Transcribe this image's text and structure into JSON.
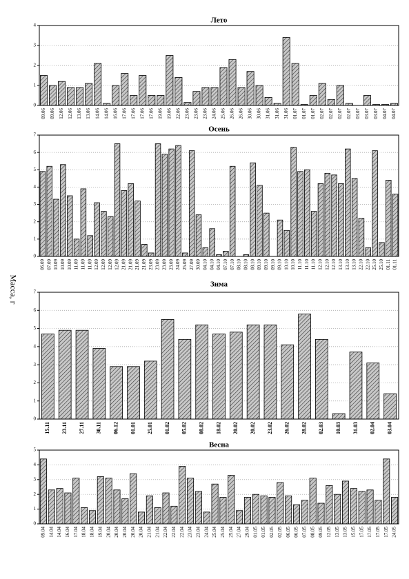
{
  "chart_data": [
    {
      "type": "bar",
      "title": "Лето",
      "color": "#c8c8c8",
      "ylim": [
        0,
        4
      ],
      "yticks": [
        0,
        1,
        2,
        3,
        4
      ],
      "grid": true,
      "categories": [
        "09.06",
        "09.06",
        "12.06",
        "12.06",
        "13.06",
        "13.06",
        "14.06",
        "14.06",
        "16.06",
        "17.06",
        "17.06",
        "17.06",
        "17.06",
        "19.06",
        "19.06",
        "22.06",
        "23.06",
        "23.06",
        "23.06",
        "24.06",
        "25.06",
        "26.06",
        "26.06",
        "30.06",
        "30.06",
        "31.06",
        "31.06",
        "31.06",
        "01.07",
        "01.07",
        "01.07",
        "02.07",
        "02.07",
        "02.07",
        "02.07",
        "03.07",
        "03.07",
        "03.07",
        "04.07",
        "04.07"
      ],
      "values": [
        1.5,
        1.0,
        1.2,
        0.9,
        0.9,
        1.1,
        2.1,
        0.1,
        1.0,
        1.6,
        0.5,
        1.5,
        0.5,
        0.5,
        2.5,
        1.4,
        0.15,
        0.7,
        0.9,
        0.9,
        1.9,
        2.3,
        0.9,
        1.7,
        1.0,
        0.4,
        0.1,
        3.4,
        2.1,
        0.05,
        0.5,
        1.1,
        0.3,
        1.0,
        0.1,
        0,
        0.5,
        0.05,
        0.05,
        0.1
      ]
    },
    {
      "type": "bar",
      "title": "Осень",
      "color": "#c8c8c8",
      "ylim": [
        0,
        7
      ],
      "yticks": [
        0,
        1,
        2,
        3,
        4,
        5,
        6,
        7
      ],
      "grid": true,
      "categories": [
        "06.09",
        "07.09",
        "10.09",
        "10.09",
        "10.09",
        "11.09",
        "11.09",
        "11.09",
        "12.09",
        "12.09",
        "12.09",
        "12.09",
        "21.09",
        "21.09",
        "21.09",
        "21.09",
        "23.09",
        "23.09",
        "23.09",
        "23.09",
        "24.09",
        "25.09",
        "27.09",
        "30.09",
        "04.10",
        "04.10",
        "04.10",
        "07.10",
        "07.10",
        "08.10",
        "08.10",
        "08.10",
        "09.10",
        "09.10",
        "09.10",
        "09.10",
        "10.10",
        "10.10",
        "11.10",
        "11.10",
        "11.10",
        "12.10",
        "12.10",
        "12.10",
        "13.10",
        "13.10",
        "13.10",
        "22.10",
        "22.10",
        "25.10",
        "25.10",
        "01.11",
        "01.11"
      ],
      "values": [
        4.9,
        5.2,
        3.3,
        5.3,
        3.5,
        1.0,
        3.9,
        1.2,
        3.1,
        2.6,
        2.3,
        6.5,
        3.8,
        4.2,
        3.2,
        0.7,
        0.2,
        6.5,
        5.9,
        6.2,
        6.4,
        0.2,
        6.1,
        2.4,
        0.5,
        1.6,
        0.1,
        0.3,
        5.2,
        0,
        0.1,
        5.4,
        4.1,
        2.5,
        0,
        2.1,
        1.5,
        6.3,
        4.9,
        5.0,
        2.6,
        4.2,
        4.8,
        4.7,
        4.2,
        6.2,
        4.5,
        2.2,
        0.5,
        6.1,
        0.8,
        4.4,
        3.6
      ]
    },
    {
      "type": "bar",
      "title": "Зима",
      "ylabel": "Масса, г",
      "color": "#c8c8c8",
      "ylim": [
        0,
        7
      ],
      "yticks": [
        0,
        1,
        2,
        3,
        4,
        5,
        6,
        7
      ],
      "grid": true,
      "categories": [
        "15.11",
        "23.11",
        "27.11",
        "30.11",
        "06.12",
        "01.01",
        "25.01",
        "01.02",
        "05.02",
        "08.02",
        "18.02",
        "20.02",
        "20.02",
        "23.02",
        "26.02",
        "28.02",
        "02.03",
        "10.03",
        "31.03",
        "02.04",
        "03.04"
      ],
      "values": [
        4.7,
        4.9,
        4.9,
        3.9,
        2.9,
        2.9,
        3.2,
        5.5,
        4.4,
        5.2,
        4.7,
        4.8,
        5.2,
        5.2,
        4.1,
        5.8,
        4.4,
        0.3,
        3.7,
        3.1,
        1.4
      ]
    },
    {
      "type": "bar",
      "title": "Весна",
      "color": "#c8c8c8",
      "ylim": [
        0,
        5
      ],
      "yticks": [
        0,
        1,
        2,
        3,
        4,
        5
      ],
      "grid": true,
      "categories": [
        "09.04",
        "14.04",
        "14.04",
        "16.04",
        "17.04",
        "18.04",
        "18.04",
        "19.04",
        "20.04",
        "20.04",
        "20.04",
        "20.04",
        "20.04",
        "21.04",
        "21.04",
        "22.04",
        "22.04",
        "22.04",
        "23.04",
        "23.04",
        "24.04",
        "25.04",
        "25.04",
        "25.04",
        "27.04",
        "29.04",
        "01.05",
        "01.05",
        "02.05",
        "02.05",
        "06.05",
        "06.05",
        "07.05",
        "08.05",
        "09.05",
        "12.05",
        "13.05",
        "13.05",
        "15.05",
        "17.05",
        "17.05",
        "17.05",
        "17.05",
        "24.05"
      ],
      "values": [
        4.4,
        2.3,
        2.4,
        2.1,
        3.1,
        1.1,
        0.9,
        3.2,
        3.1,
        2.3,
        1.7,
        3.4,
        0.8,
        1.9,
        1.1,
        2.1,
        1.2,
        3.9,
        3.1,
        2.2,
        0.8,
        2.7,
        1.8,
        3.3,
        0.9,
        1.8,
        2.0,
        1.9,
        1.8,
        2.8,
        1.9,
        1.3,
        1.6,
        3.1,
        1.4,
        2.6,
        2.0,
        2.9,
        2.4,
        2.2,
        2.3,
        1.6,
        4.4,
        1.8
      ]
    }
  ]
}
